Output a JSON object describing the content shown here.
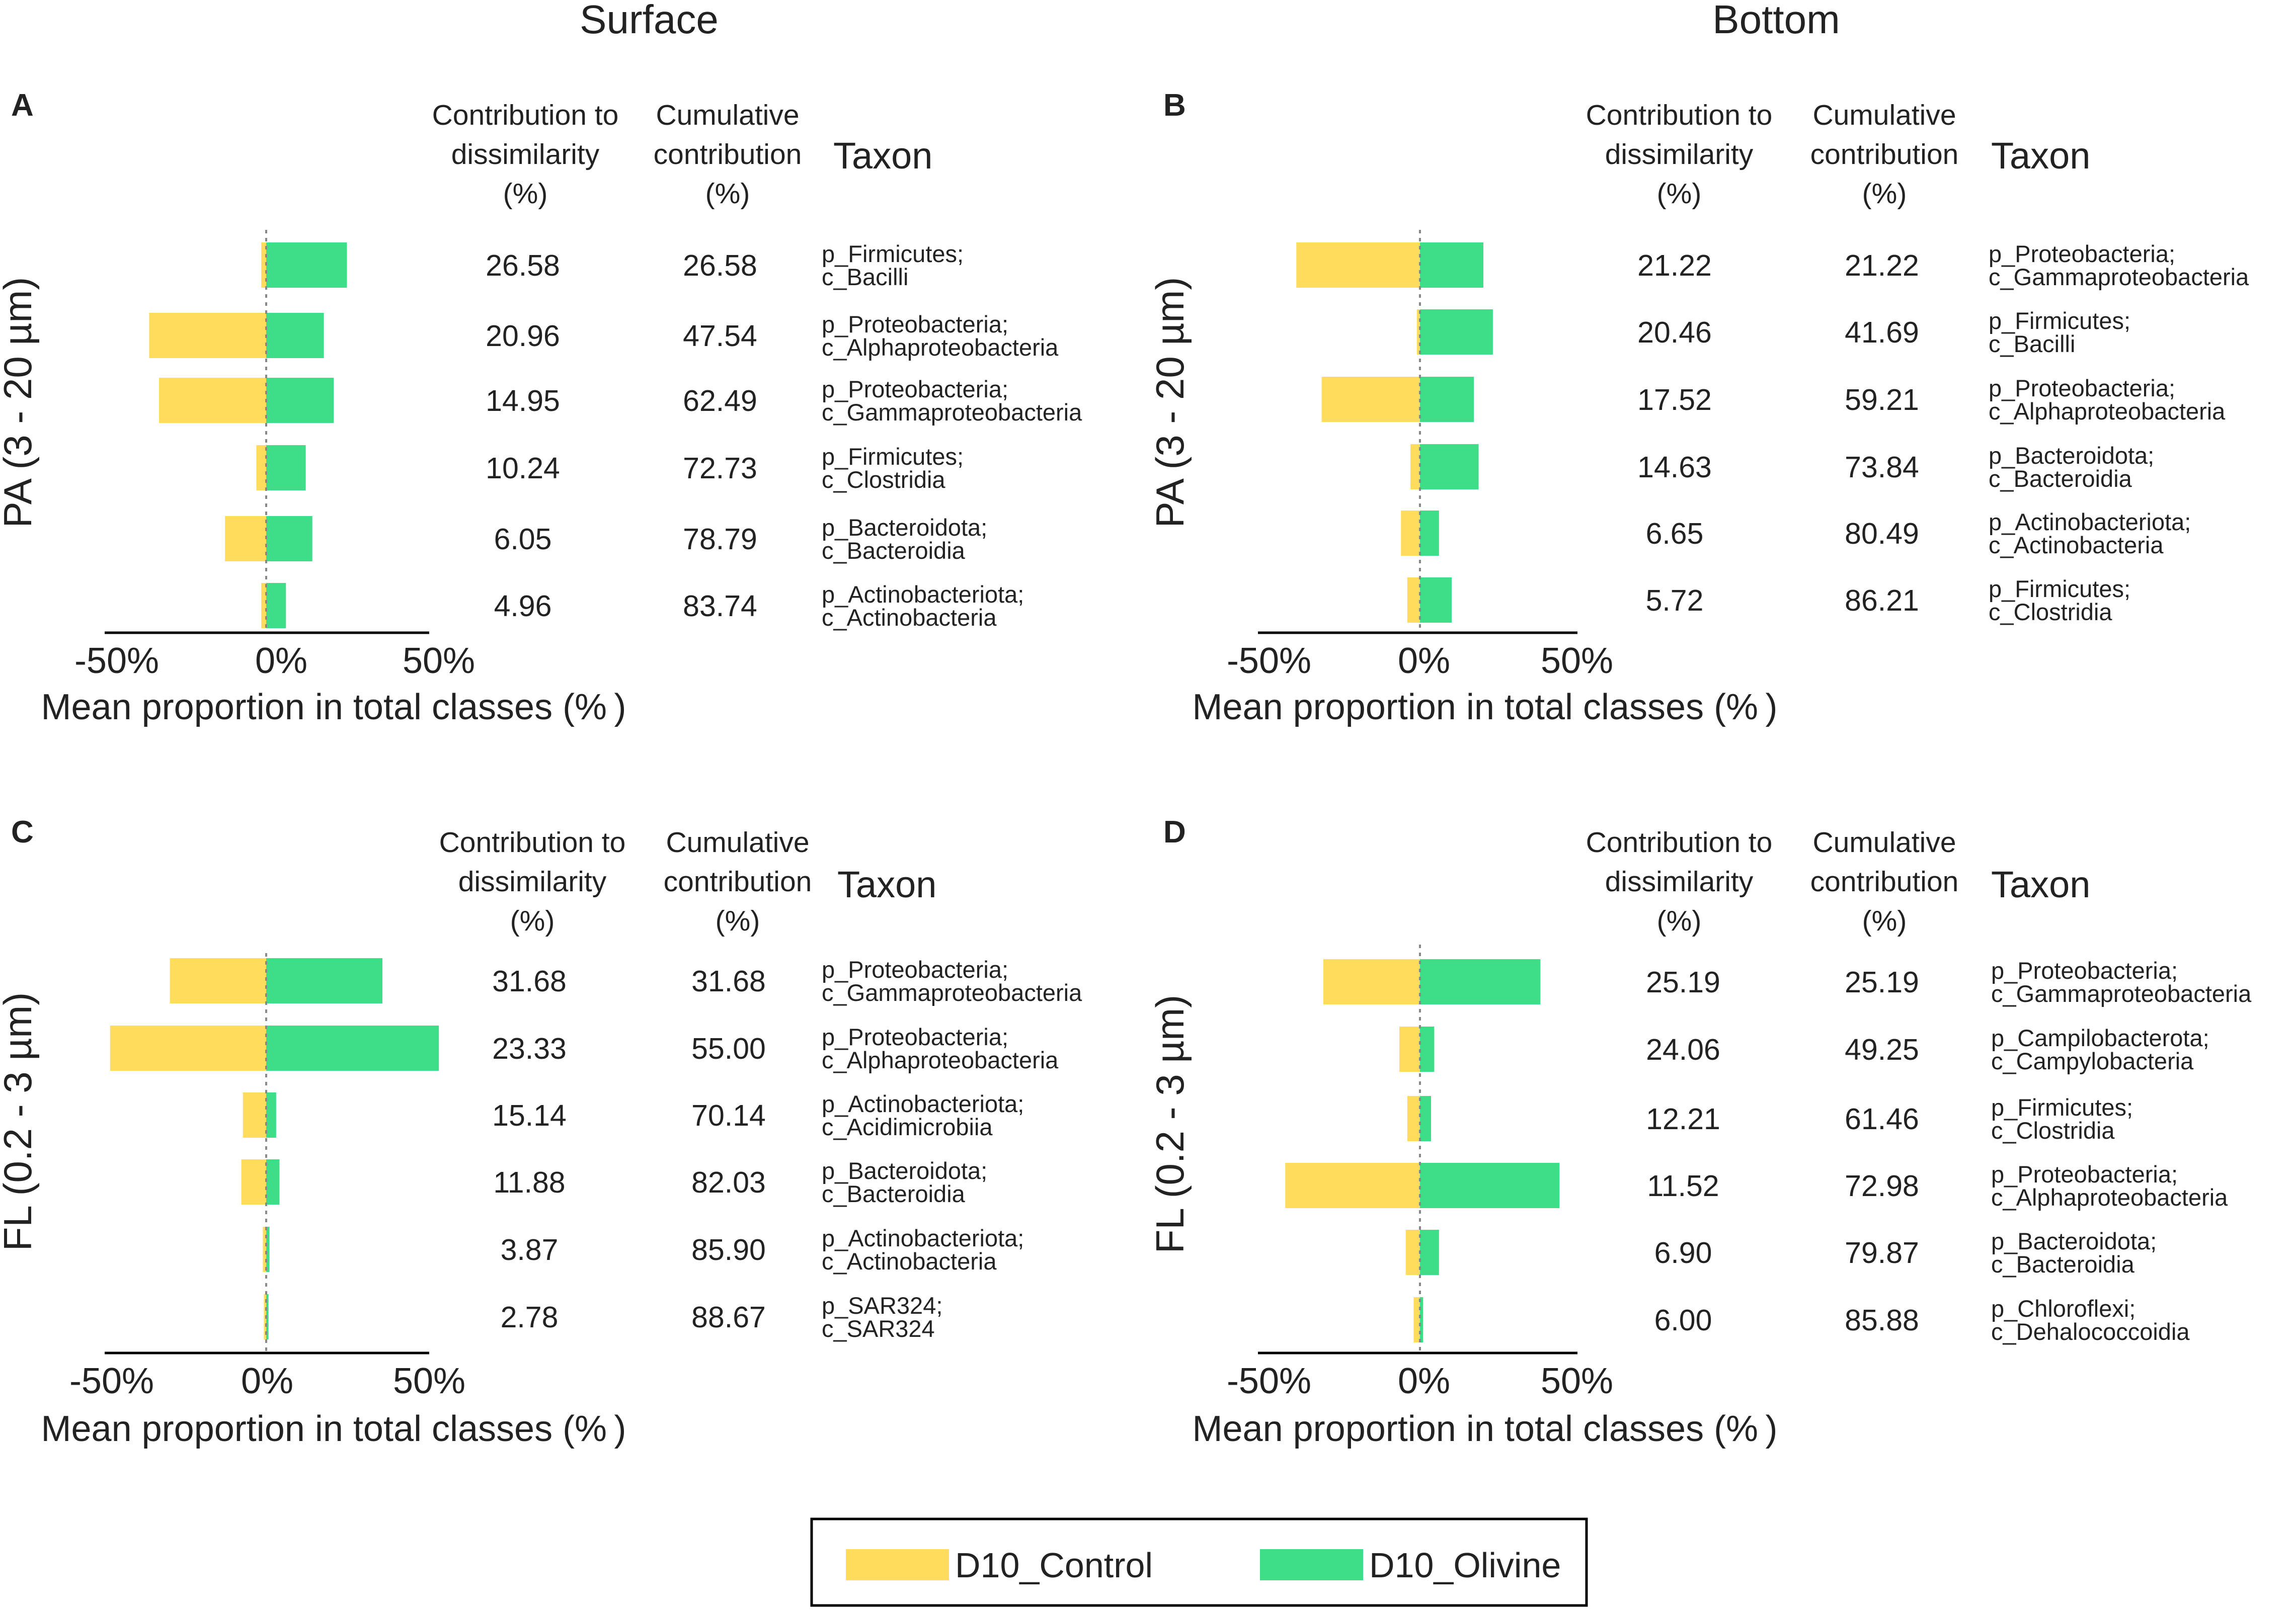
{
  "colors": {
    "control": "#FFDC5B",
    "olivine": "#3DDE87",
    "axis": "#000000",
    "zero_line": "#888888"
  },
  "column_titles": [
    "Surface",
    "Bottom"
  ],
  "legend": {
    "control_label": "D10_Control",
    "olivine_label": "D10_Olivine"
  },
  "chart_data": [
    {
      "type": "bar",
      "orientation": "horizontal-diverging",
      "panel": "A",
      "row_label": "PA (3 - 20 µm)",
      "header": {
        "contribution": [
          "Contribution to",
          "dissimilarity",
          "(%)"
        ],
        "cumulative": [
          "Cumulative",
          "contribution",
          "(%)"
        ],
        "taxon": "Taxon"
      },
      "xlabel": "Mean proportion  in total classes (% )",
      "xlim": [
        -50,
        50
      ],
      "xticks": [
        -50,
        0,
        50
      ],
      "xtick_labels": [
        "-50%",
        "0%",
        "50%"
      ],
      "categories": [
        [
          "p_Firmicutes;",
          "c_Bacilli"
        ],
        [
          "p_Proteobacteria;",
          "c_Alphaproteobacteria"
        ],
        [
          "p_Proteobacteria;",
          "c_Gammaproteobacteria"
        ],
        [
          "p_Firmicutes;",
          "c_Clostridia"
        ],
        [
          "p_Bacteroidota;",
          "c_Bacteroidia"
        ],
        [
          "p_Actinobacteriota;",
          "c_Actinobacteria"
        ]
      ],
      "contribution": [
        "26.58",
        "20.96",
        "14.95",
        "10.24",
        "6.05",
        "4.96"
      ],
      "cumulative": [
        "26.58",
        "47.54",
        "62.49",
        "72.73",
        "78.79",
        "83.74"
      ],
      "series": [
        {
          "name": "D10_Control",
          "values": [
            -1.5,
            -35.5,
            -32.5,
            -3,
            -12.5,
            -1.5
          ]
        },
        {
          "name": "D10_Olivine",
          "values": [
            24.5,
            17.5,
            20.5,
            12,
            14,
            6
          ]
        }
      ]
    },
    {
      "type": "bar",
      "orientation": "horizontal-diverging",
      "panel": "B",
      "row_label": "PA (3 - 20 µm)",
      "header": {
        "contribution": [
          "Contribution to",
          "dissimilarity",
          "(%)"
        ],
        "cumulative": [
          "Cumulative",
          "contribution",
          "(%)"
        ],
        "taxon": "Taxon"
      },
      "xlabel": "Mean proportion  in total classes (% )",
      "xlim": [
        -50,
        50
      ],
      "xticks": [
        -50,
        0,
        50
      ],
      "xtick_labels": [
        "-50%",
        "0%",
        "50%"
      ],
      "categories": [
        [
          "p_Proteobacteria;",
          "c_Gammaproteobacteria"
        ],
        [
          "p_Firmicutes;",
          "c_Bacilli"
        ],
        [
          "p_Proteobacteria;",
          "c_Alphaproteobacteria"
        ],
        [
          "p_Bacteroidota;",
          "c_Bacteroidia"
        ],
        [
          "p_Actinobacteriota;",
          "c_Actinobacteria"
        ],
        [
          "p_Firmicutes;",
          "c_Clostridia"
        ]
      ],
      "contribution": [
        "21.22",
        "20.46",
        "17.52",
        "14.63",
        "6.65",
        "5.72"
      ],
      "cumulative": [
        "21.22",
        "41.69",
        "59.21",
        "73.84",
        "80.49",
        "86.21"
      ],
      "series": [
        {
          "name": "D10_Control",
          "values": [
            -39,
            -1,
            -31,
            -3,
            -6,
            -4
          ]
        },
        {
          "name": "D10_Olivine",
          "values": [
            20,
            23,
            17,
            18.5,
            6,
            10
          ]
        }
      ]
    },
    {
      "type": "bar",
      "orientation": "horizontal-diverging",
      "panel": "C",
      "row_label": "FL (0.2 - 3 µm)",
      "header": {
        "contribution": [
          "Contribution to",
          "dissimilarity",
          "(%)"
        ],
        "cumulative": [
          "Cumulative",
          "contribution",
          "(%)"
        ],
        "taxon": "Taxon"
      },
      "xlabel": "Mean proportion  in total classes (% )",
      "xlim": [
        -50,
        50
      ],
      "xticks": [
        -50,
        0,
        50
      ],
      "xtick_labels": [
        "-50%",
        "0%",
        "50%"
      ],
      "categories": [
        [
          "p_Proteobacteria;",
          "c_Gammaproteobacteria"
        ],
        [
          "p_Proteobacteria;",
          "c_Alphaproteobacteria"
        ],
        [
          "p_Actinobacteriota;",
          "c_Acidimicrobiia"
        ],
        [
          "p_Bacteroidota;",
          "c_Bacteroidia"
        ],
        [
          "p_Actinobacteriota;",
          "c_Actinobacteria"
        ],
        [
          "p_SAR324;",
          "c_SAR324"
        ]
      ],
      "contribution": [
        "31.68",
        "23.33",
        "15.14",
        "11.88",
        "3.87",
        "2.78"
      ],
      "cumulative": [
        "31.68",
        "55.00",
        "70.14",
        "82.03",
        "85.90",
        "88.67"
      ],
      "series": [
        {
          "name": "D10_Control",
          "values": [
            -29,
            -47,
            -7,
            -7.5,
            -1,
            -0.7
          ]
        },
        {
          "name": "D10_Olivine",
          "values": [
            35,
            52,
            3,
            4,
            1,
            0.7
          ]
        }
      ]
    },
    {
      "type": "bar",
      "orientation": "horizontal-diverging",
      "panel": "D",
      "row_label": "FL (0.2 - 3 µm)",
      "header": {
        "contribution": [
          "Contribution to",
          "dissimilarity",
          "(%)"
        ],
        "cumulative": [
          "Cumulative",
          "contribution",
          "(%)"
        ],
        "taxon": "Taxon"
      },
      "xlabel": "Mean proportion  in total classes (% )",
      "xlim": [
        -50,
        50
      ],
      "xticks": [
        -50,
        0,
        50
      ],
      "xtick_labels": [
        "-50%",
        "0%",
        "50%"
      ],
      "categories": [
        [
          "p_Proteobacteria;",
          "c_Gammaproteobacteria"
        ],
        [
          "p_Campilobacterota;",
          "c_Campylobacteria"
        ],
        [
          "p_Firmicutes;",
          "c_Clostridia"
        ],
        [
          "p_Proteobacteria;",
          "c_Alphaproteobacteria"
        ],
        [
          "p_Bacteroidota;",
          "c_Bacteroidia"
        ],
        [
          "p_Chloroflexi;",
          "c_Dehalococcoidia"
        ]
      ],
      "contribution": [
        "25.19",
        "24.06",
        "12.21",
        "11.52",
        "6.90",
        "6.00"
      ],
      "cumulative": [
        "25.19",
        "49.25",
        "61.46",
        "72.98",
        "79.87",
        "85.88"
      ],
      "series": [
        {
          "name": "D10_Control",
          "values": [
            -30.5,
            -6.5,
            -4,
            -42.5,
            -4.5,
            -2
          ]
        },
        {
          "name": "D10_Olivine",
          "values": [
            38,
            4.5,
            3.5,
            44,
            6,
            1
          ]
        }
      ]
    }
  ]
}
